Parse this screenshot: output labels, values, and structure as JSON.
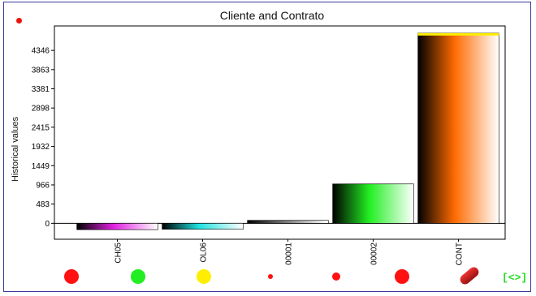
{
  "chart_data": {
    "type": "bar",
    "title": "Cliente and Contrato",
    "ylabel": "Historical values",
    "xlabel": "",
    "y_ticks": [
      0,
      483,
      966,
      1449,
      1932,
      2415,
      2898,
      3381,
      3863,
      4346
    ],
    "ylim": [
      -400,
      4960
    ],
    "categories": [
      "CH05",
      "OL06",
      "00001",
      "00002",
      "CONT"
    ],
    "values": [
      -160,
      -150,
      75,
      990,
      4780
    ],
    "bar_colors": [
      "#e020e0",
      "#20e0e0",
      "#000000",
      "#22ee22",
      "#ff6a00"
    ],
    "grid": false
  },
  "legend": {
    "markers": [
      {
        "name": "red-dot",
        "color": "#ff1111",
        "size": "large"
      },
      {
        "name": "green-dot",
        "color": "#22ee22",
        "size": "large"
      },
      {
        "name": "yellow-dot",
        "color": "#ffee00",
        "size": "large"
      },
      {
        "name": "small-red-dot",
        "color": "#ff1111",
        "size": "tiny"
      },
      {
        "name": "medium-red-dot",
        "color": "#ff1111",
        "size": "small"
      },
      {
        "name": "red-dot-2",
        "color": "#ff1111",
        "size": "large"
      },
      {
        "name": "red-capsule",
        "color": "#cc1111",
        "size": "capsule"
      }
    ],
    "nav_label": "[<>]"
  },
  "top_marker_color": "#ee1111"
}
